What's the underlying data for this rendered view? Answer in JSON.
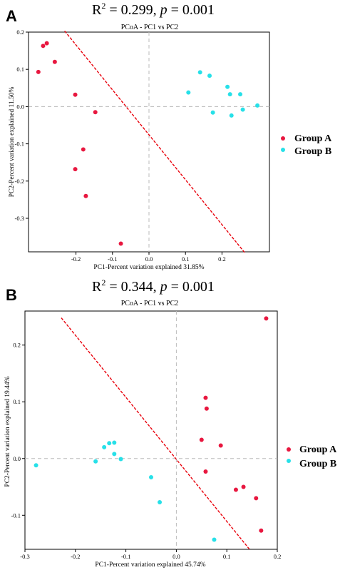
{
  "panels": [
    {
      "letter": "A",
      "stat_R": "R",
      "stat_sup": "2",
      "stat_mid": " = 0.299, ",
      "stat_p": "p",
      "stat_end": " = 0.001"
    },
    {
      "letter": "B",
      "stat_R": "R",
      "stat_sup": "2",
      "stat_mid": " = 0.344, ",
      "stat_p": "p",
      "stat_end": " = 0.001"
    }
  ],
  "chart_data": [
    {
      "type": "scatter",
      "title": "PCoA - PC1 vs PC2",
      "xlabel": "PC1-Percent variation explained 31.85%",
      "ylabel": "PC2-Percent variation explained 11.50%",
      "xlim": [
        -0.33,
        0.33
      ],
      "ylim": [
        -0.39,
        0.2
      ],
      "xticks": [
        -0.2,
        -0.1,
        0.0,
        0.1,
        0.2
      ],
      "xtick_labels": [
        "-0.2",
        "-0.1",
        "0.0",
        "0.1",
        "0.2"
      ],
      "yticks": [
        0.2,
        0.1,
        0.0,
        -0.1,
        -0.2,
        -0.3
      ],
      "ytick_labels": [
        "0.2",
        "0.1",
        "0.0",
        "-0.1",
        "-0.2",
        "-0.3"
      ],
      "zero_lines": true,
      "legend_position": "right",
      "series": [
        {
          "name": "Group A",
          "color": "#e8173f",
          "points": [
            [
              -0.28,
              0.17
            ],
            [
              -0.29,
              0.163
            ],
            [
              -0.303,
              0.093
            ],
            [
              -0.258,
              0.12
            ],
            [
              -0.202,
              0.032
            ],
            [
              -0.147,
              -0.015
            ],
            [
              -0.18,
              -0.115
            ],
            [
              -0.202,
              -0.168
            ],
            [
              -0.173,
              -0.24
            ],
            [
              -0.077,
              -0.368
            ]
          ]
        },
        {
          "name": "Group B",
          "color": "#27e0e8",
          "points": [
            [
              0.14,
              0.092
            ],
            [
              0.166,
              0.083
            ],
            [
              0.215,
              0.053
            ],
            [
              0.222,
              0.033
            ],
            [
              0.25,
              0.033
            ],
            [
              0.108,
              0.038
            ],
            [
              0.175,
              -0.016
            ],
            [
              0.226,
              -0.024
            ],
            [
              0.257,
              -0.008
            ],
            [
              0.297,
              0.003
            ]
          ]
        }
      ],
      "regression_line": {
        "color": "#e8000b",
        "from": [
          -0.231,
          0.203
        ],
        "to": [
          0.263,
          -0.393
        ]
      }
    },
    {
      "type": "scatter",
      "title": "PCoA - PC1 vs PC2",
      "xlabel": "PC1-Percent variation explained 45.74%",
      "ylabel": "PC2-Percent variation explained 19.44%",
      "xlim": [
        -0.3,
        0.2
      ],
      "ylim": [
        -0.16,
        0.26
      ],
      "xticks": [
        -0.3,
        -0.2,
        -0.1,
        0.0,
        0.1,
        0.2
      ],
      "xtick_labels": [
        "-0.3",
        "-0.2",
        "-0.1",
        "0.0",
        "0.1",
        "0.2"
      ],
      "yticks": [
        0.2,
        0.1,
        0.0,
        -0.1
      ],
      "ytick_labels": [
        "0.2",
        "0.1",
        "0.0",
        "-0.1"
      ],
      "zero_lines": true,
      "legend_position": "right",
      "series": [
        {
          "name": "Group A",
          "color": "#e8173f",
          "points": [
            [
              0.178,
              0.247
            ],
            [
              0.058,
              0.107
            ],
            [
              0.06,
              0.088
            ],
            [
              0.05,
              0.033
            ],
            [
              0.088,
              0.023
            ],
            [
              0.058,
              -0.023
            ],
            [
              0.118,
              -0.055
            ],
            [
              0.133,
              -0.05
            ],
            [
              0.158,
              -0.07
            ],
            [
              0.168,
              -0.127
            ]
          ]
        },
        {
          "name": "Group B",
          "color": "#27e0e8",
          "points": [
            [
              -0.278,
              -0.012
            ],
            [
              -0.16,
              -0.005
            ],
            [
              -0.143,
              0.02
            ],
            [
              -0.133,
              0.027
            ],
            [
              -0.123,
              0.028
            ],
            [
              -0.123,
              0.008
            ],
            [
              -0.11,
              -0.001
            ],
            [
              -0.05,
              -0.033
            ],
            [
              -0.033,
              -0.077
            ],
            [
              0.075,
              -0.143
            ]
          ]
        }
      ],
      "regression_line": {
        "color": "#e8000b",
        "from": [
          -0.228,
          0.248
        ],
        "to": [
          0.145,
          -0.16
        ]
      }
    }
  ]
}
